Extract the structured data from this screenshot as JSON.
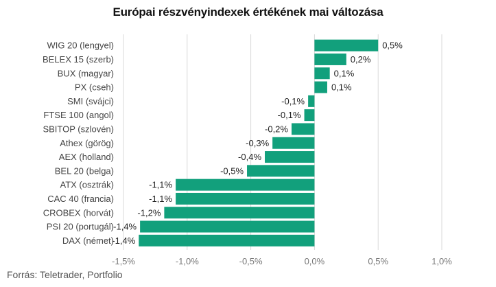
{
  "chart_data": {
    "type": "bar",
    "orientation": "horizontal",
    "title": "Európai részvényindexek értékének mai változása",
    "source": "Forrás: Teletrader, Portfolio",
    "categories": [
      "WIG 20 (lengyel)",
      "BELEX 15 (szerb)",
      "BUX (magyar)",
      "PX (cseh)",
      "SMI (svájci)",
      "FTSE 100 (angol)",
      "SBITOP (szlovén)",
      "Athex (görög)",
      "AEX (holland)",
      "BEL 20 (belga)",
      "ATX (osztrák)",
      "CAC 40 (francia)",
      "CROBEX (horvát)",
      "PSI 20 (portugál)",
      "DAX (német)"
    ],
    "values": [
      0.5,
      0.25,
      0.12,
      0.1,
      -0.05,
      -0.08,
      -0.18,
      -0.33,
      -0.39,
      -0.53,
      -1.09,
      -1.09,
      -1.18,
      -1.37,
      -1.38
    ],
    "value_labels": [
      "0,5%",
      "0,2%",
      "0,1%",
      "0,1%",
      "-0,1%",
      "-0,1%",
      "-0,2%",
      "-0,3%",
      "-0,4%",
      "-0,5%",
      "-1,1%",
      "-1,1%",
      "-1,2%",
      "-1,4%",
      "-1,4%"
    ],
    "xlim": [
      -1.5,
      1.0
    ],
    "xticks": [
      -1.5,
      -1.0,
      -0.5,
      0.0,
      0.5,
      1.0
    ],
    "xtick_labels": [
      "-1,5%",
      "-1,0%",
      "-0,5%",
      "0,0%",
      "0,5%",
      "1,0%"
    ],
    "grid": true,
    "bar_color": "#12a07c",
    "xlabel": "",
    "ylabel": ""
  }
}
